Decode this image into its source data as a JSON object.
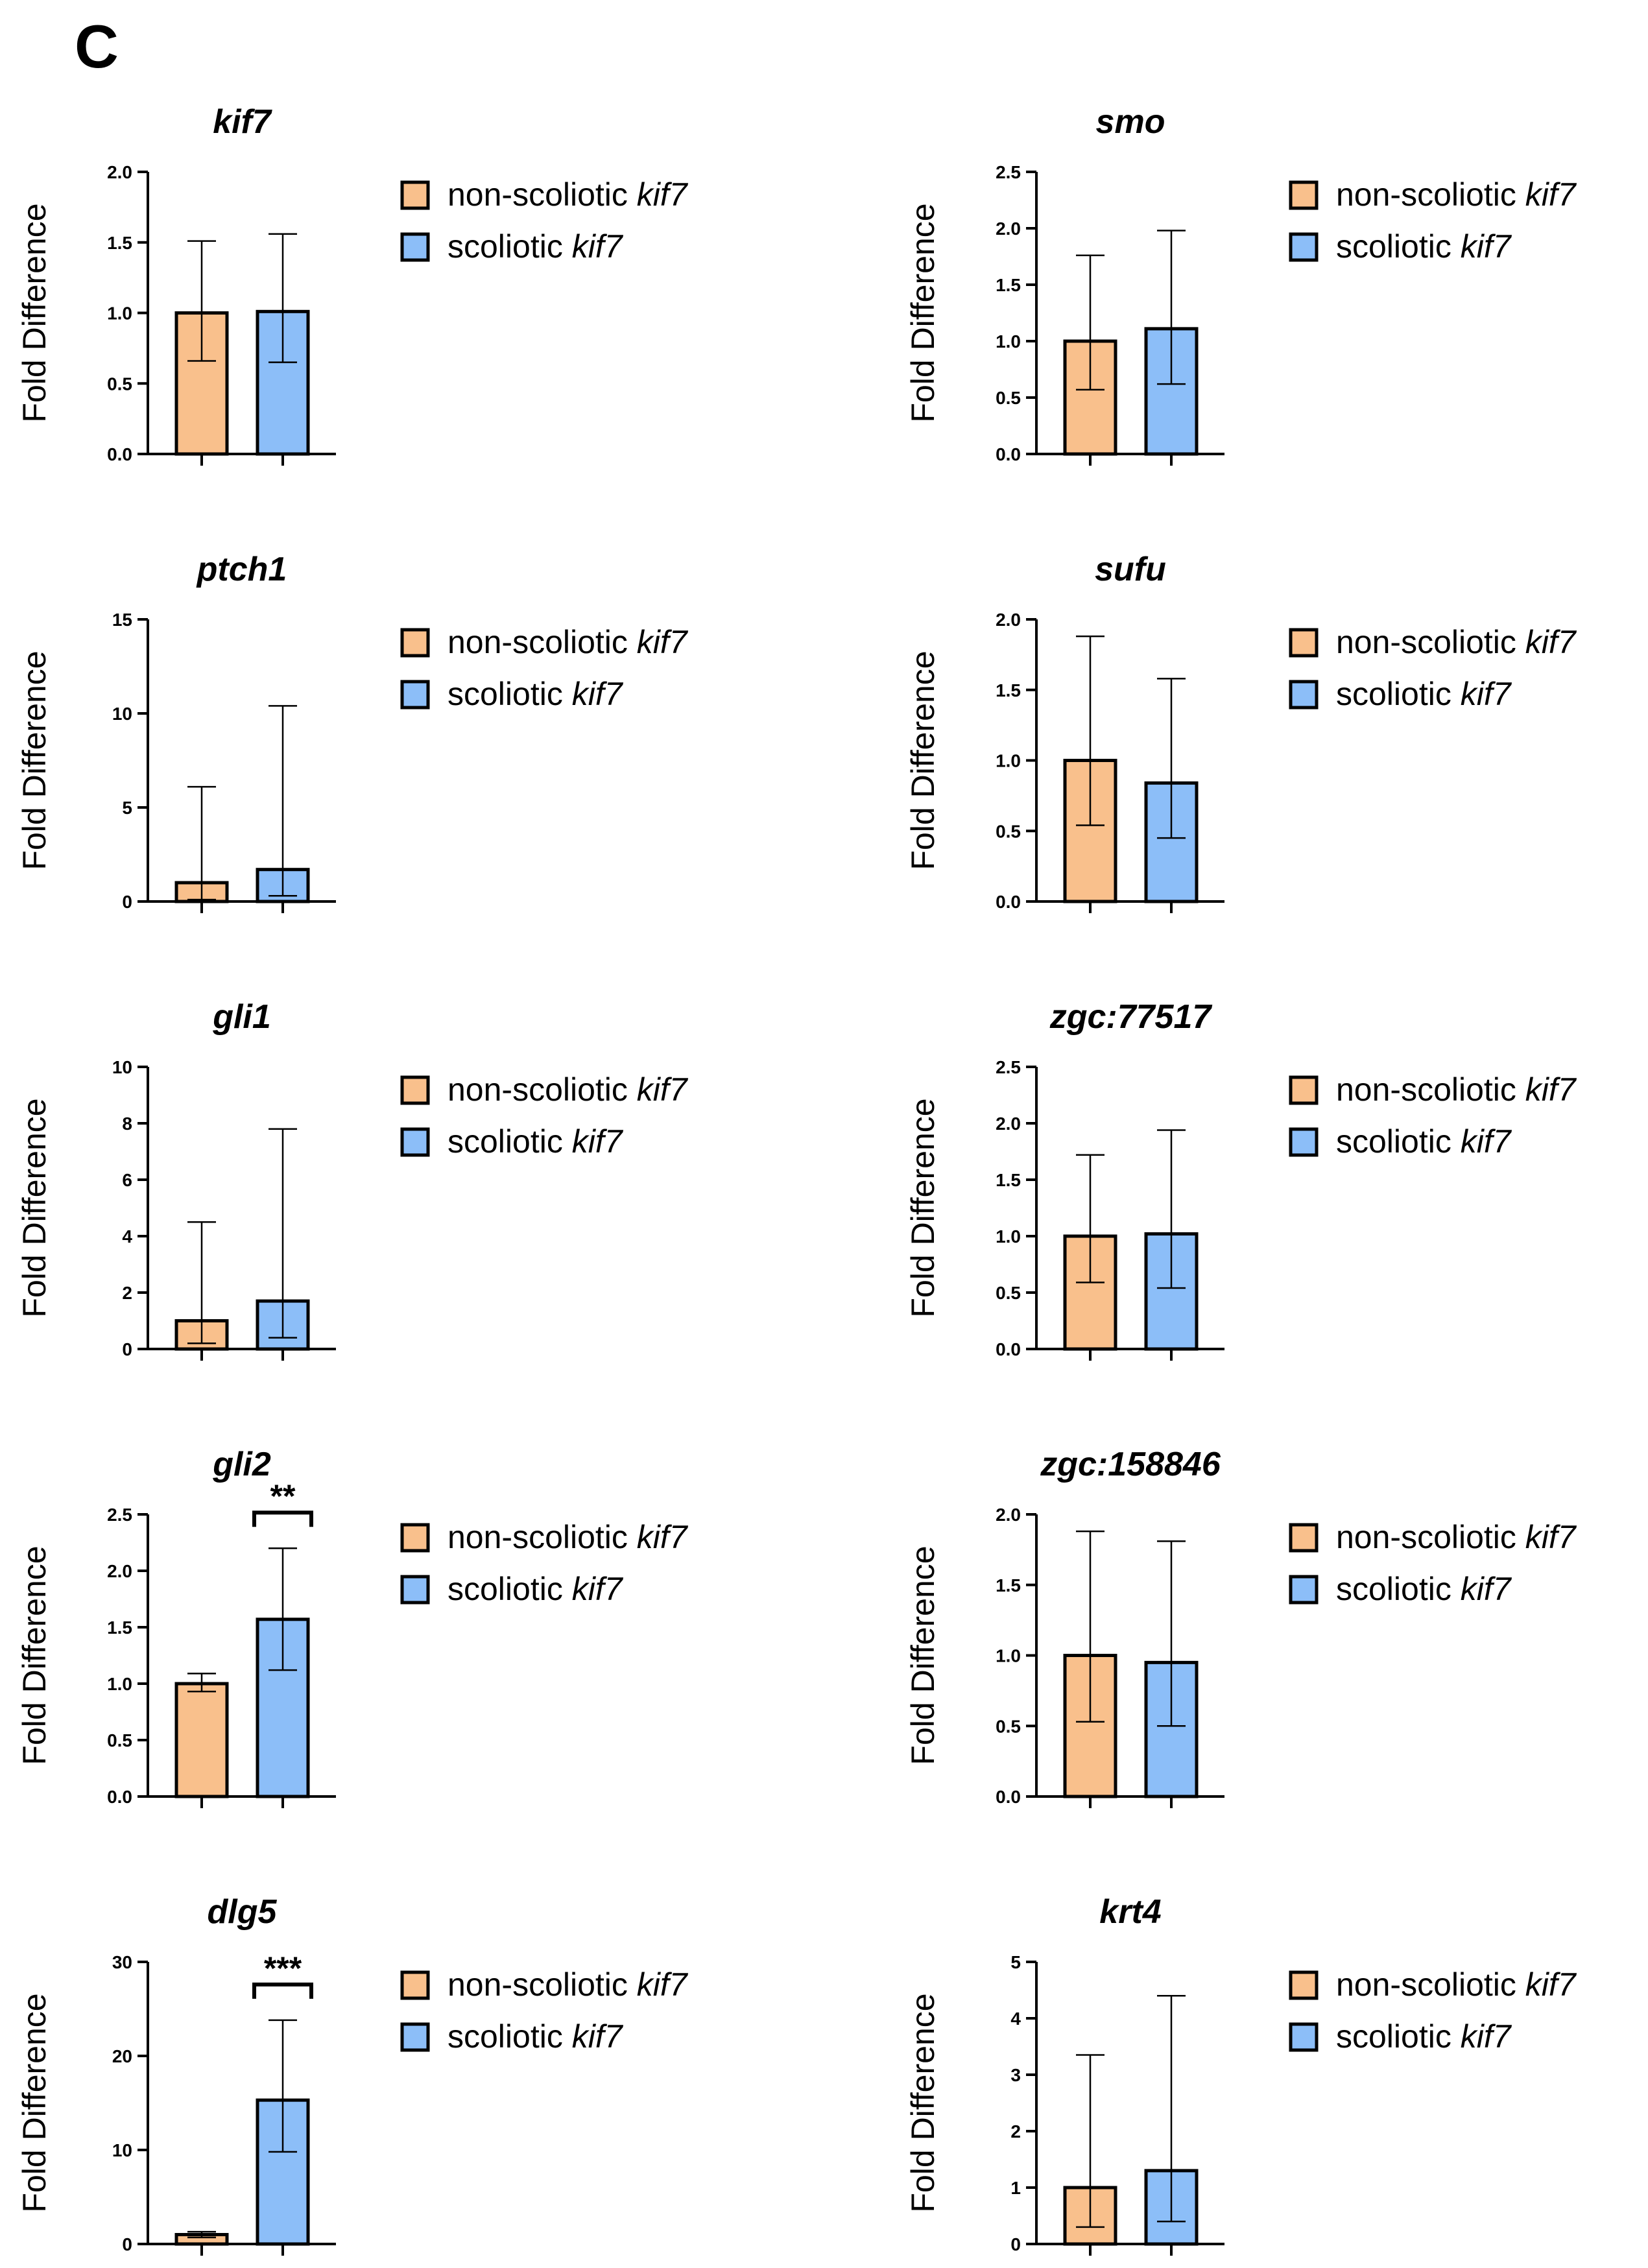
{
  "panel_label": "C",
  "colors": {
    "non_scoliotic": "#F9C08C",
    "scoliotic": "#8CBEF8",
    "line": "#000000"
  },
  "legend_labels": {
    "non_scoliotic_prefix": "non-scoliotic ",
    "scoliotic_prefix": "scoliotic ",
    "gene": "kif7"
  },
  "chart_data": [
    {
      "type": "bar",
      "title": "kif7",
      "ylabel": "Fold Difference",
      "ylim": [
        0,
        2.0
      ],
      "yticks": [
        "0.0",
        "0.5",
        "1.0",
        "1.5",
        "2.0"
      ],
      "categories": [
        "non-scoliotic kif7",
        "scoliotic kif7"
      ],
      "values": [
        1.0,
        1.01
      ],
      "err_low": [
        0.66,
        0.65
      ],
      "err_high": [
        1.51,
        1.56
      ],
      "significance": ""
    },
    {
      "type": "bar",
      "title": "smo",
      "ylabel": "Fold Difference",
      "ylim": [
        0,
        2.5
      ],
      "yticks": [
        "0.0",
        "0.5",
        "1.0",
        "1.5",
        "2.0",
        "2.5"
      ],
      "categories": [
        "non-scoliotic kif7",
        "scoliotic kif7"
      ],
      "values": [
        1.0,
        1.11
      ],
      "err_low": [
        0.57,
        0.62
      ],
      "err_high": [
        1.76,
        1.98
      ],
      "significance": ""
    },
    {
      "type": "bar",
      "title": "ptch1",
      "ylabel": "Fold Difference",
      "ylim": [
        0,
        15
      ],
      "yticks": [
        "0",
        "5",
        "10",
        "15"
      ],
      "categories": [
        "non-scoliotic kif7",
        "scoliotic kif7"
      ],
      "values": [
        1.0,
        1.7
      ],
      "err_low": [
        0.1,
        0.3
      ],
      "err_high": [
        6.1,
        10.4
      ],
      "significance": ""
    },
    {
      "type": "bar",
      "title": "sufu",
      "ylabel": "Fold Difference",
      "ylim": [
        0,
        2.0
      ],
      "yticks": [
        "0.0",
        "0.5",
        "1.0",
        "1.5",
        "2.0"
      ],
      "categories": [
        "non-scoliotic kif7",
        "scoliotic kif7"
      ],
      "values": [
        1.0,
        0.84
      ],
      "err_low": [
        0.54,
        0.45
      ],
      "err_high": [
        1.88,
        1.58
      ],
      "significance": ""
    },
    {
      "type": "bar",
      "title": "gli1",
      "ylabel": "Fold Difference",
      "ylim": [
        0,
        10
      ],
      "yticks": [
        "0",
        "2",
        "4",
        "6",
        "8",
        "10"
      ],
      "categories": [
        "non-scoliotic kif7",
        "scoliotic kif7"
      ],
      "values": [
        1.0,
        1.7
      ],
      "err_low": [
        0.2,
        0.4
      ],
      "err_high": [
        4.5,
        7.8
      ],
      "significance": ""
    },
    {
      "type": "bar",
      "title": "zgc:77517",
      "ylabel": "Fold Difference",
      "ylim": [
        0,
        2.5
      ],
      "yticks": [
        "0.0",
        "0.5",
        "1.0",
        "1.5",
        "2.0",
        "2.5"
      ],
      "categories": [
        "non-scoliotic kif7",
        "scoliotic kif7"
      ],
      "values": [
        1.0,
        1.02
      ],
      "err_low": [
        0.59,
        0.54
      ],
      "err_high": [
        1.72,
        1.94
      ],
      "significance": ""
    },
    {
      "type": "bar",
      "title": "gli2",
      "ylabel": "Fold Difference",
      "ylim": [
        0,
        2.5
      ],
      "yticks": [
        "0.0",
        "0.5",
        "1.0",
        "1.5",
        "2.0",
        "2.5"
      ],
      "categories": [
        "non-scoliotic kif7",
        "scoliotic kif7"
      ],
      "values": [
        1.0,
        1.57
      ],
      "err_low": [
        0.93,
        1.12
      ],
      "err_high": [
        1.09,
        2.2
      ],
      "significance": "**"
    },
    {
      "type": "bar",
      "title": "zgc:158846",
      "ylabel": "Fold Difference",
      "ylim": [
        0,
        2.0
      ],
      "yticks": [
        "0.0",
        "0.5",
        "1.0",
        "1.5",
        "2.0"
      ],
      "categories": [
        "non-scoliotic kif7",
        "scoliotic kif7"
      ],
      "values": [
        1.0,
        0.95
      ],
      "err_low": [
        0.53,
        0.5
      ],
      "err_high": [
        1.88,
        1.81
      ],
      "significance": ""
    },
    {
      "type": "bar",
      "title": "dlg5",
      "ylabel": "Fold Difference",
      "ylim": [
        0,
        30
      ],
      "yticks": [
        "0",
        "10",
        "20",
        "30"
      ],
      "categories": [
        "non-scoliotic kif7",
        "scoliotic kif7"
      ],
      "values": [
        1.0,
        15.3
      ],
      "err_low": [
        0.7,
        9.8
      ],
      "err_high": [
        1.3,
        23.8
      ],
      "significance": "***"
    },
    {
      "type": "bar",
      "title": "krt4",
      "ylabel": "Fold Difference",
      "ylim": [
        0,
        5
      ],
      "yticks": [
        "0",
        "1",
        "2",
        "3",
        "4",
        "5"
      ],
      "categories": [
        "non-scoliotic kif7",
        "scoliotic kif7"
      ],
      "values": [
        1.0,
        1.3
      ],
      "err_low": [
        0.3,
        0.4
      ],
      "err_high": [
        3.35,
        4.4
      ],
      "significance": ""
    }
  ]
}
